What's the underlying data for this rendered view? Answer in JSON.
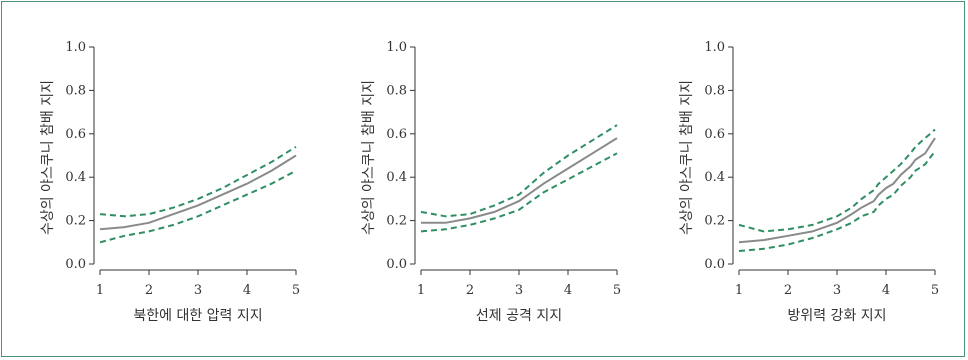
{
  "colors": {
    "frame": "#4a8f7f",
    "fit": "#8a8a8a",
    "ci": "#2f8f63",
    "axis": "#333333"
  },
  "chart_data": [
    {
      "type": "line",
      "title": "",
      "xlabel": "북한에 대한 압력 지지",
      "ylabel": "수상의 야스쿠니 참배 지지",
      "xlim": [
        1,
        5
      ],
      "ylim": [
        0,
        1
      ],
      "x_ticks": [
        "1",
        "2",
        "3",
        "4",
        "5"
      ],
      "y_ticks": [
        "0.0",
        "0.2",
        "0.4",
        "0.6",
        "0.8",
        "1.0"
      ],
      "x": [
        1,
        1.5,
        2,
        2.5,
        3,
        3.5,
        4,
        4.5,
        5
      ],
      "series": [
        {
          "role": "fit",
          "values": [
            0.16,
            0.17,
            0.19,
            0.23,
            0.27,
            0.32,
            0.37,
            0.43,
            0.5
          ]
        },
        {
          "role": "ci-upper",
          "values": [
            0.23,
            0.22,
            0.23,
            0.26,
            0.3,
            0.35,
            0.41,
            0.47,
            0.54
          ]
        },
        {
          "role": "ci-lower",
          "values": [
            0.1,
            0.13,
            0.15,
            0.18,
            0.22,
            0.27,
            0.32,
            0.37,
            0.43
          ]
        }
      ]
    },
    {
      "type": "line",
      "title": "",
      "xlabel": "선제 공격 지지",
      "ylabel": "수상의 야스쿠니 참배 지지",
      "xlim": [
        1,
        5
      ],
      "ylim": [
        0,
        1
      ],
      "x_ticks": [
        "1",
        "2",
        "3",
        "4",
        "5"
      ],
      "y_ticks": [
        "0.0",
        "0.2",
        "0.4",
        "0.6",
        "0.8",
        "1.0"
      ],
      "x": [
        1,
        1.5,
        2,
        2.5,
        3,
        3.5,
        4,
        4.5,
        5
      ],
      "series": [
        {
          "role": "fit",
          "values": [
            0.19,
            0.19,
            0.21,
            0.24,
            0.29,
            0.37,
            0.44,
            0.51,
            0.58
          ]
        },
        {
          "role": "ci-upper",
          "values": [
            0.24,
            0.22,
            0.23,
            0.27,
            0.32,
            0.42,
            0.5,
            0.57,
            0.64
          ]
        },
        {
          "role": "ci-lower",
          "values": [
            0.15,
            0.16,
            0.18,
            0.21,
            0.25,
            0.33,
            0.39,
            0.45,
            0.51
          ]
        }
      ]
    },
    {
      "type": "line",
      "title": "",
      "xlabel": "방위력 강화 지지",
      "ylabel": "수상의 야스쿠니 참배 지지",
      "xlim": [
        1,
        5
      ],
      "ylim": [
        0,
        1
      ],
      "x_ticks": [
        "1",
        "2",
        "3",
        "4",
        "5"
      ],
      "y_ticks": [
        "0.0",
        "0.2",
        "0.4",
        "0.6",
        "0.8",
        "1.0"
      ],
      "x": [
        1,
        1.5,
        2,
        2.5,
        3,
        3.3,
        3.5,
        3.75,
        3.85,
        4,
        4.15,
        4.3,
        4.5,
        4.6,
        4.8,
        5
      ],
      "series": [
        {
          "role": "fit",
          "values": [
            0.1,
            0.11,
            0.13,
            0.15,
            0.19,
            0.23,
            0.26,
            0.29,
            0.32,
            0.35,
            0.37,
            0.41,
            0.45,
            0.48,
            0.51,
            0.58
          ]
        },
        {
          "role": "ci-upper",
          "values": [
            0.18,
            0.15,
            0.16,
            0.18,
            0.22,
            0.26,
            0.3,
            0.34,
            0.37,
            0.4,
            0.43,
            0.46,
            0.51,
            0.54,
            0.58,
            0.62
          ]
        },
        {
          "role": "ci-lower",
          "values": [
            0.06,
            0.07,
            0.09,
            0.12,
            0.16,
            0.19,
            0.22,
            0.24,
            0.27,
            0.3,
            0.32,
            0.36,
            0.4,
            0.43,
            0.46,
            0.52
          ]
        }
      ]
    }
  ]
}
